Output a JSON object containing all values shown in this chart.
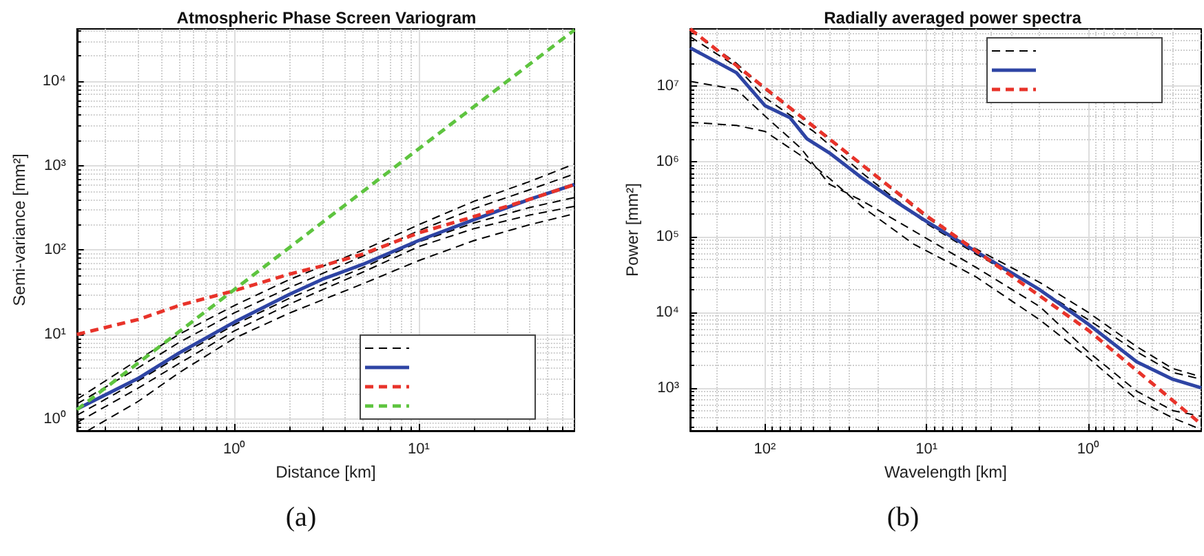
{
  "chart_data": [
    {
      "type": "line",
      "title": "Atmospheric Phase Screen Variogram",
      "xlabel": "Distance [km]",
      "ylabel": "Semi-variance [mm²]",
      "annotations": [
        "(a)"
      ],
      "log": "xy",
      "grid": true,
      "xlim": [
        0.14,
        70
      ],
      "xticks": [
        {
          "value": 1,
          "label": "10⁰"
        },
        {
          "value": 10,
          "label": "10¹"
        }
      ],
      "ylim": [
        0.72,
        42000
      ],
      "yticks": [
        {
          "value": 1,
          "label": "10⁰"
        },
        {
          "value": 10,
          "label": "10¹"
        },
        {
          "value": 100,
          "label": "10²"
        },
        {
          "value": 1000,
          "label": "10³"
        },
        {
          "value": 10000,
          "label": "10⁴"
        }
      ],
      "series": [
        {
          "color": "#000000",
          "line_style": "dashed",
          "x": [
            0.14,
            0.3,
            0.5,
            1,
            2,
            5,
            10,
            20,
            40,
            70
          ],
          "values": [
            1.7,
            5,
            10,
            22,
            45,
            100,
            200,
            380,
            650,
            1050
          ]
        },
        {
          "color": "#000000",
          "line_style": "dashed",
          "x": [
            0.14,
            0.3,
            0.5,
            1,
            2,
            5,
            10,
            20,
            40,
            70
          ],
          "values": [
            1.5,
            4,
            8,
            18,
            36,
            85,
            170,
            310,
            520,
            800
          ]
        },
        {
          "color": "#000000",
          "line_style": "dashed",
          "x": [
            0.14,
            0.3,
            0.5,
            1,
            2,
            5,
            10,
            20,
            40,
            70
          ],
          "values": [
            1.1,
            2.8,
            5.5,
            13,
            27,
            62,
            125,
            210,
            320,
            420
          ]
        },
        {
          "color": "#000000",
          "line_style": "dashed",
          "x": [
            0.14,
            0.3,
            0.5,
            1,
            2,
            5,
            10,
            20,
            40,
            70
          ],
          "values": [
            0.9,
            2.3,
            4.5,
            11,
            23,
            55,
            110,
            180,
            260,
            330
          ]
        },
        {
          "color": "#000000",
          "line_style": "dashed",
          "x": [
            0.16,
            0.3,
            0.5,
            1,
            2,
            5,
            10,
            20,
            40,
            70
          ],
          "values": [
            0.72,
            1.6,
            3.5,
            9,
            18,
            40,
            75,
            130,
            200,
            270
          ]
        },
        {
          "color": "#2e44a4",
          "line_style": "solid",
          "x": [
            0.14,
            0.3,
            0.5,
            1,
            2,
            3,
            5,
            10,
            20,
            40,
            70
          ],
          "values": [
            1.3,
            3,
            6,
            14,
            30,
            45,
            68,
            130,
            230,
            400,
            600
          ]
        },
        {
          "color": "#e8332a",
          "line_style": "dashed",
          "x": [
            0.14,
            0.3,
            0.5,
            1,
            2,
            3,
            5,
            10,
            20,
            40,
            70
          ],
          "values": [
            10,
            15,
            22,
            33,
            52,
            65,
            90,
            160,
            250,
            400,
            600
          ]
        },
        {
          "color": "#5ec43f",
          "line_style": "dashed",
          "x": [
            0.14,
            70
          ],
          "values": [
            1.28,
            40800
          ]
        }
      ]
    },
    {
      "type": "line",
      "title": "Radially averaged power spectra",
      "xlabel": "Wavelength [km]",
      "ylabel": "Power [mm²]",
      "annotations": [
        "(b)"
      ],
      "log": "xy",
      "grid": true,
      "xlim": [
        290,
        0.2
      ],
      "xticks": [
        {
          "value": 100,
          "label": "10²"
        },
        {
          "value": 10,
          "label": "10¹"
        },
        {
          "value": 1,
          "label": "10⁰"
        }
      ],
      "ylim": [
        270,
        57000000
      ],
      "yticks": [
        {
          "value": 1000,
          "label": "10³"
        },
        {
          "value": 10000,
          "label": "10⁴"
        },
        {
          "value": 100000,
          "label": "10⁵"
        },
        {
          "value": 1000000,
          "label": "10⁶"
        },
        {
          "value": 10000000,
          "label": "10⁷"
        }
      ],
      "series": [
        {
          "color": "#000000",
          "line_style": "dashed",
          "x": [
            290,
            150,
            100,
            50,
            25,
            10,
            5,
            2,
            1,
            0.5,
            0.3,
            0.2
          ],
          "values": [
            55000000,
            20000000,
            9000000,
            3000000,
            900000,
            180000,
            70000,
            25000,
            10000,
            3500,
            1800,
            1400
          ]
        },
        {
          "color": "#000000",
          "line_style": "dashed",
          "x": [
            290,
            150,
            100,
            50,
            25,
            10,
            5,
            2,
            1,
            0.5,
            0.3,
            0.2
          ],
          "values": [
            45000000,
            18000000,
            7000000,
            2500000,
            700000,
            150000,
            60000,
            20000,
            8000,
            3000,
            1600,
            1300
          ]
        },
        {
          "color": "#000000",
          "line_style": "dashed",
          "x": [
            290,
            150,
            100,
            60,
            40,
            25,
            12,
            5,
            2,
            1,
            0.5,
            0.3,
            0.2
          ],
          "values": [
            11500000,
            9000000,
            4000000,
            1500000,
            500000,
            300000,
            120000,
            40000,
            12000,
            3000,
            900,
            500,
            420
          ]
        },
        {
          "color": "#000000",
          "line_style": "dashed",
          "x": [
            290,
            150,
            100,
            60,
            40,
            25,
            12,
            5,
            2,
            1,
            0.5,
            0.3,
            0.2
          ],
          "values": [
            3300000,
            3000000,
            2500000,
            1200000,
            600000,
            250000,
            80000,
            30000,
            8000,
            2500,
            700,
            400,
            280
          ]
        },
        {
          "color": "#2e44a4",
          "line_style": "solid",
          "x": [
            290,
            150,
            100,
            70,
            55,
            40,
            25,
            15,
            10,
            5,
            2,
            1,
            0.5,
            0.3,
            0.2
          ],
          "values": [
            32000000,
            15000000,
            5500000,
            3800000,
            2000000,
            1300000,
            600000,
            280000,
            160000,
            65000,
            20000,
            7000,
            2200,
            1300,
            1000
          ]
        },
        {
          "color": "#e8332a",
          "line_style": "dashed",
          "x": [
            290,
            10,
            1,
            0.2
          ],
          "values": [
            57000000,
            190000,
            5800,
            330
          ]
        }
      ]
    }
  ]
}
